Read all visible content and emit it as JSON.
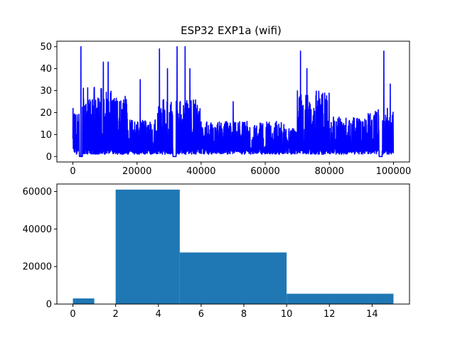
{
  "title": "ESP32 EXP1a  (wifi)",
  "chart_data": [
    {
      "type": "line",
      "title": "ESP32 EXP1a  (wifi)",
      "xlabel": "",
      "ylabel": "",
      "xlim": [
        -5000,
        105000
      ],
      "ylim": [
        -2.5,
        52.5
      ],
      "x_ticks": [
        0,
        20000,
        40000,
        60000,
        80000,
        100000
      ],
      "y_ticks": [
        0,
        10,
        20,
        30,
        40,
        50
      ],
      "grid": false,
      "color": "#0000ff",
      "series": [
        {
          "x_range": [
            0,
            100000
          ],
          "notes_peaks": [
            [
              2500,
              50
            ],
            [
              9500,
              43
            ],
            [
              11000,
              43
            ],
            [
              21000,
              35
            ],
            [
              27000,
              49
            ],
            [
              29500,
              40
            ],
            [
              32500,
              50
            ],
            [
              35000,
              50
            ],
            [
              36500,
              40
            ],
            [
              50000,
              25
            ],
            [
              71000,
              48
            ],
            [
              73000,
              40
            ],
            [
              97000,
              48
            ],
            [
              99000,
              33
            ]
          ]
        }
      ]
    },
    {
      "type": "bar",
      "title": "",
      "xlabel": "",
      "ylabel": "",
      "xlim": [
        -0.75,
        15.75
      ],
      "ylim": [
        0,
        64000
      ],
      "x_ticks": [
        0,
        2,
        4,
        6,
        8,
        10,
        12,
        14
      ],
      "y_ticks": [
        0,
        20000,
        40000,
        60000
      ],
      "grid": false,
      "color": "#1f77b4",
      "bins": [
        {
          "start": 0,
          "end": 1,
          "value": 3000
        },
        {
          "start": 2,
          "end": 5,
          "value": 61000
        },
        {
          "start": 5,
          "end": 10,
          "value": 27500
        },
        {
          "start": 10,
          "end": 15,
          "value": 5500
        }
      ]
    }
  ]
}
